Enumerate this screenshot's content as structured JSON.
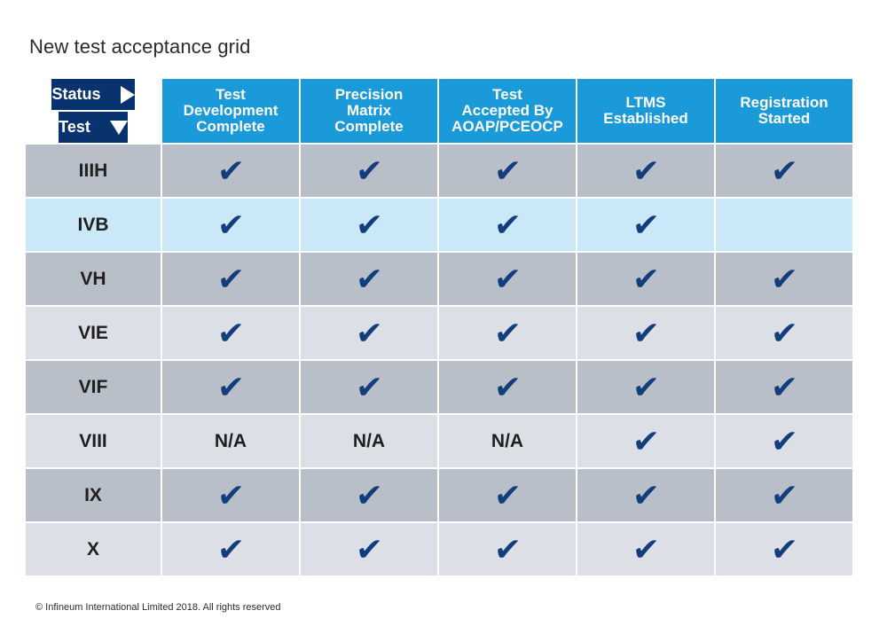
{
  "title": "New test acceptance grid",
  "corner": {
    "status_label": "Status",
    "test_label": "Test"
  },
  "columns": [
    "Test\nDevelopment\nComplete",
    "Precision\nMatrix\nComplete",
    "Test\nAccepted By\nAOAP/PCEOCP",
    "LTMS\nEstablished",
    "Registration\nStarted"
  ],
  "rows": [
    {
      "test": "IIIH",
      "bg": "#b9bfc9",
      "cells": [
        "check",
        "check",
        "check",
        "check",
        "check"
      ]
    },
    {
      "test": "IVB",
      "bg": "#cbe8f8",
      "cells": [
        "check",
        "check",
        "check",
        "check",
        ""
      ]
    },
    {
      "test": "VH",
      "bg": "#b9bfc9",
      "cells": [
        "check",
        "check",
        "check",
        "check",
        "check"
      ]
    },
    {
      "test": "VIE",
      "bg": "#dcdfe5",
      "cells": [
        "check",
        "check",
        "check",
        "check",
        "check"
      ]
    },
    {
      "test": "VIF",
      "bg": "#b9bfc9",
      "cells": [
        "check",
        "check",
        "check",
        "check",
        "check"
      ]
    },
    {
      "test": "VIII",
      "bg": "#dcdfe5",
      "cells": [
        "N/A",
        "N/A",
        "N/A",
        "check",
        "check"
      ]
    },
    {
      "test": "IX",
      "bg": "#b9bfc9",
      "cells": [
        "check",
        "check",
        "check",
        "check",
        "check"
      ]
    },
    {
      "test": "X",
      "bg": "#dcdfe5",
      "cells": [
        "check",
        "check",
        "check",
        "check",
        "check"
      ]
    }
  ],
  "colors": {
    "header_dark": "#08336e",
    "header_blue": "#1a9ad9",
    "check": "#133e7c"
  },
  "icons": {
    "check": "checkmark-icon",
    "status_arrow": "triangle-right-icon",
    "test_arrow": "triangle-down-icon"
  },
  "footer": "© Infineum International Limited 2018. All rights reserved"
}
